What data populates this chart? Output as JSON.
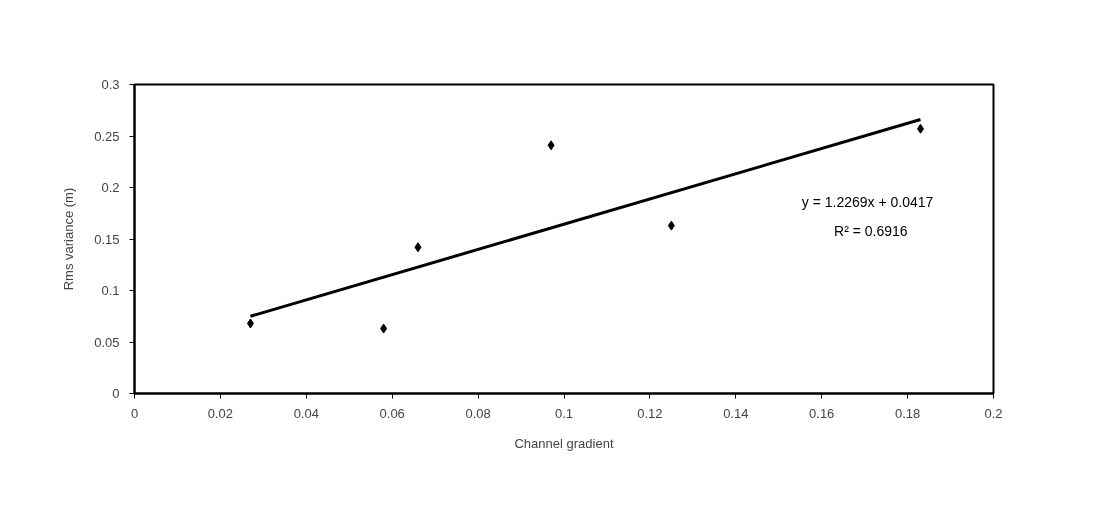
{
  "chart_data": {
    "type": "scatter",
    "xlabel": "Channel gradient",
    "ylabel": "Rms variance (m)",
    "xlim": [
      0,
      0.2
    ],
    "ylim": [
      0,
      0.3
    ],
    "xticks": [
      0,
      0.02,
      0.04,
      0.06,
      0.08,
      0.1,
      0.12,
      0.14,
      0.16,
      0.18,
      0.2
    ],
    "yticks": [
      0,
      0.05,
      0.1,
      0.15,
      0.2,
      0.25,
      0.3
    ],
    "grid": false,
    "series": [
      {
        "marker": "diamond",
        "color": "#000000",
        "x": [
          0.027,
          0.058,
          0.066,
          0.097,
          0.125,
          0.183
        ],
        "values": [
          0.068,
          0.063,
          0.142,
          0.241,
          0.163,
          0.257
        ]
      },
      {
        "type": "line",
        "color": "#000000",
        "x": [
          0.027,
          0.183
        ],
        "values": [
          0.075,
          0.266
        ]
      }
    ],
    "annotations": [
      "y = 1.2269x + 0.0417",
      "R² = 0.6916"
    ]
  }
}
